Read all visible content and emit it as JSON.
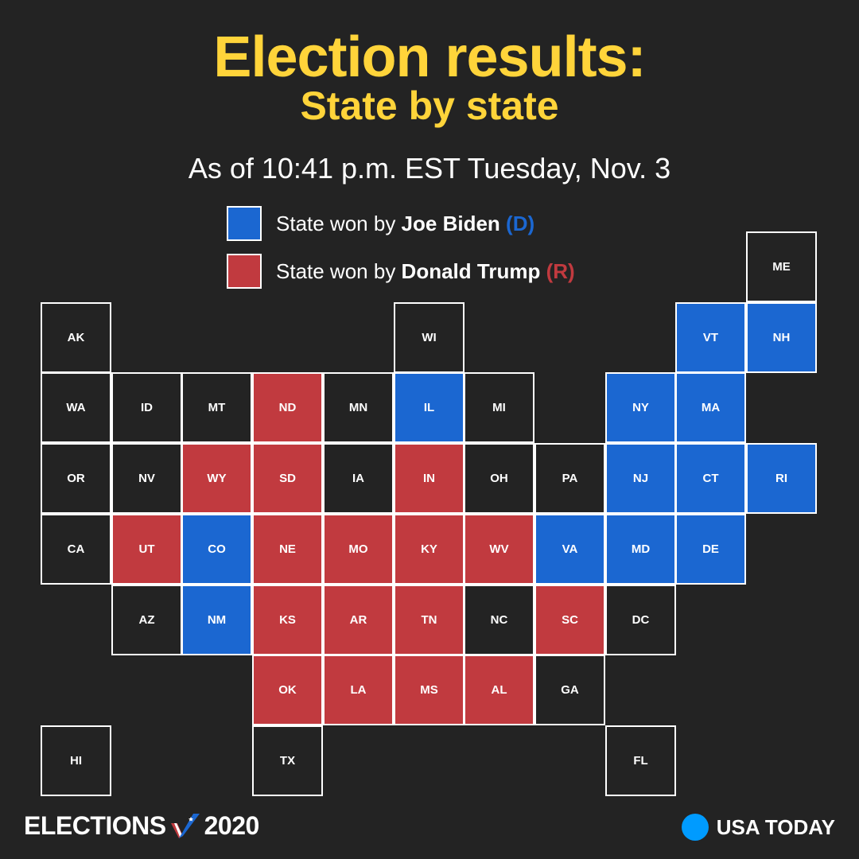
{
  "header": {
    "title": "Election results:",
    "subtitle": "State by state",
    "timestamp": "As of 10:41 p.m. EST Tuesday, Nov. 3"
  },
  "colors": {
    "background": "#232323",
    "title": "#FFD43A",
    "dem": "#1B67D1",
    "rep": "#C13A3F",
    "undecided": "#232323",
    "border": "#FFFFFF"
  },
  "legend": {
    "dem": {
      "prefix": "State won by ",
      "candidate": "Joe Biden",
      "party": "(D)"
    },
    "rep": {
      "prefix": "State won by ",
      "candidate": "Donald Trump",
      "party": "(R)"
    }
  },
  "chart_data": {
    "type": "tile-grid-map",
    "grid": {
      "columns": 11,
      "rows": 8
    },
    "states": [
      {
        "abbr": "ME",
        "col": 10,
        "row": 0,
        "winner": null
      },
      {
        "abbr": "AK",
        "col": 0,
        "row": 1,
        "winner": null
      },
      {
        "abbr": "WI",
        "col": 5,
        "row": 1,
        "winner": null
      },
      {
        "abbr": "VT",
        "col": 9,
        "row": 1,
        "winner": "D"
      },
      {
        "abbr": "NH",
        "col": 10,
        "row": 1,
        "winner": "D"
      },
      {
        "abbr": "WA",
        "col": 0,
        "row": 2,
        "winner": null
      },
      {
        "abbr": "ID",
        "col": 1,
        "row": 2,
        "winner": null
      },
      {
        "abbr": "MT",
        "col": 2,
        "row": 2,
        "winner": null
      },
      {
        "abbr": "ND",
        "col": 3,
        "row": 2,
        "winner": "R"
      },
      {
        "abbr": "MN",
        "col": 4,
        "row": 2,
        "winner": null
      },
      {
        "abbr": "IL",
        "col": 5,
        "row": 2,
        "winner": "D"
      },
      {
        "abbr": "MI",
        "col": 6,
        "row": 2,
        "winner": null
      },
      {
        "abbr": "NY",
        "col": 8,
        "row": 2,
        "winner": "D"
      },
      {
        "abbr": "MA",
        "col": 9,
        "row": 2,
        "winner": "D"
      },
      {
        "abbr": "OR",
        "col": 0,
        "row": 3,
        "winner": null
      },
      {
        "abbr": "NV",
        "col": 1,
        "row": 3,
        "winner": null
      },
      {
        "abbr": "WY",
        "col": 2,
        "row": 3,
        "winner": "R"
      },
      {
        "abbr": "SD",
        "col": 3,
        "row": 3,
        "winner": "R"
      },
      {
        "abbr": "IA",
        "col": 4,
        "row": 3,
        "winner": null
      },
      {
        "abbr": "IN",
        "col": 5,
        "row": 3,
        "winner": "R"
      },
      {
        "abbr": "OH",
        "col": 6,
        "row": 3,
        "winner": null
      },
      {
        "abbr": "PA",
        "col": 7,
        "row": 3,
        "winner": null
      },
      {
        "abbr": "NJ",
        "col": 8,
        "row": 3,
        "winner": "D"
      },
      {
        "abbr": "CT",
        "col": 9,
        "row": 3,
        "winner": "D"
      },
      {
        "abbr": "RI",
        "col": 10,
        "row": 3,
        "winner": "D"
      },
      {
        "abbr": "CA",
        "col": 0,
        "row": 4,
        "winner": null
      },
      {
        "abbr": "UT",
        "col": 1,
        "row": 4,
        "winner": "R"
      },
      {
        "abbr": "CO",
        "col": 2,
        "row": 4,
        "winner": "D"
      },
      {
        "abbr": "NE",
        "col": 3,
        "row": 4,
        "winner": "R"
      },
      {
        "abbr": "MO",
        "col": 4,
        "row": 4,
        "winner": "R"
      },
      {
        "abbr": "KY",
        "col": 5,
        "row": 4,
        "winner": "R"
      },
      {
        "abbr": "WV",
        "col": 6,
        "row": 4,
        "winner": "R"
      },
      {
        "abbr": "VA",
        "col": 7,
        "row": 4,
        "winner": "D"
      },
      {
        "abbr": "MD",
        "col": 8,
        "row": 4,
        "winner": "D"
      },
      {
        "abbr": "DE",
        "col": 9,
        "row": 4,
        "winner": "D"
      },
      {
        "abbr": "AZ",
        "col": 1,
        "row": 5,
        "winner": null
      },
      {
        "abbr": "NM",
        "col": 2,
        "row": 5,
        "winner": "D"
      },
      {
        "abbr": "KS",
        "col": 3,
        "row": 5,
        "winner": "R"
      },
      {
        "abbr": "AR",
        "col": 4,
        "row": 5,
        "winner": "R"
      },
      {
        "abbr": "TN",
        "col": 5,
        "row": 5,
        "winner": "R"
      },
      {
        "abbr": "NC",
        "col": 6,
        "row": 5,
        "winner": null
      },
      {
        "abbr": "SC",
        "col": 7,
        "row": 5,
        "winner": "R"
      },
      {
        "abbr": "DC",
        "col": 8,
        "row": 5,
        "winner": null
      },
      {
        "abbr": "OK",
        "col": 3,
        "row": 6,
        "winner": "R"
      },
      {
        "abbr": "LA",
        "col": 4,
        "row": 6,
        "winner": "R"
      },
      {
        "abbr": "MS",
        "col": 5,
        "row": 6,
        "winner": "R"
      },
      {
        "abbr": "AL",
        "col": 6,
        "row": 6,
        "winner": "R"
      },
      {
        "abbr": "GA",
        "col": 7,
        "row": 6,
        "winner": null
      },
      {
        "abbr": "HI",
        "col": 0,
        "row": 7,
        "winner": null
      },
      {
        "abbr": "TX",
        "col": 3,
        "row": 7,
        "winner": null
      },
      {
        "abbr": "FL",
        "col": 8,
        "row": 7,
        "winner": null
      }
    ]
  },
  "footer": {
    "elections_label": "ELECTIONS",
    "year_label": "2020",
    "logo_icon": "checkmark-flag-icon",
    "brand_icon": "usa-today-dot-icon",
    "brand_label": "USA TODAY"
  }
}
